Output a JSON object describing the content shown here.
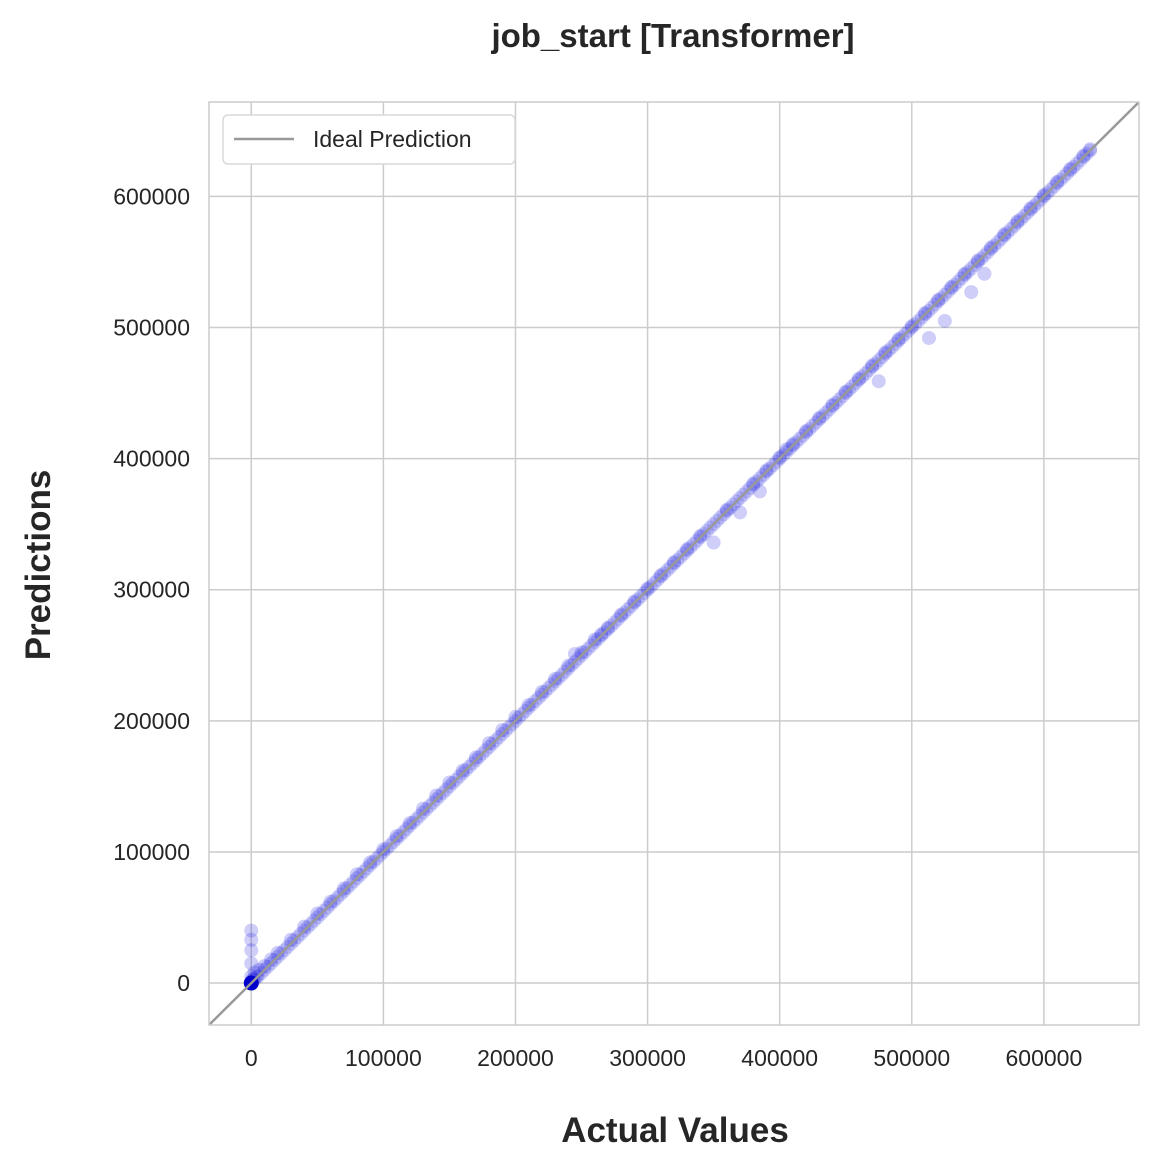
{
  "chart_data": {
    "type": "scatter",
    "title": "job_start [Transformer]",
    "xlabel": "Actual Values",
    "ylabel": "Predictions",
    "xlim": [
      -32000,
      672000
    ],
    "ylim": [
      -32000,
      672000
    ],
    "xticks": [
      0,
      100000,
      200000,
      300000,
      400000,
      500000,
      600000
    ],
    "yticks": [
      0,
      100000,
      200000,
      300000,
      400000,
      500000,
      600000
    ],
    "xtick_labels": [
      "0",
      "100000",
      "200000",
      "300000",
      "400000",
      "500000",
      "600000"
    ],
    "ytick_labels": [
      "0",
      "100000",
      "200000",
      "300000",
      "400000",
      "500000",
      "600000"
    ],
    "grid": true,
    "legend": {
      "position": "top-left",
      "entries": [
        "Ideal Prediction"
      ]
    },
    "reference_line": {
      "name": "Ideal Prediction",
      "color": "#999999",
      "slope": 1,
      "intercept": 0
    },
    "series": [
      {
        "color": "#1f1fe0",
        "x": [
          0,
          0,
          0,
          0,
          0,
          0,
          500,
          1500,
          2500,
          4000,
          6000,
          10000,
          15000,
          20000,
          30000,
          40000,
          50000,
          60000,
          70000,
          80000,
          90000,
          100000,
          110000,
          120000,
          130000,
          140000,
          150000,
          160000,
          170000,
          180000,
          190000,
          200000,
          210000,
          220000,
          230000,
          240000,
          245000,
          250000,
          260000,
          265000,
          270000,
          280000,
          290000,
          300000,
          310000,
          320000,
          330000,
          340000,
          350000,
          360000,
          370000,
          380000,
          385000,
          390000,
          400000,
          405000,
          410000,
          420000,
          430000,
          440000,
          450000,
          460000,
          470000,
          475000,
          480000,
          490000,
          500000,
          510000,
          513000,
          520000,
          525000,
          530000,
          540000,
          545000,
          550000,
          555000,
          560000,
          570000,
          580000,
          590000,
          600000,
          610000,
          620000,
          630000,
          635000
        ],
        "y": [
          0,
          5000,
          15000,
          25000,
          33000,
          40000,
          2000,
          3000,
          8000,
          5000,
          10000,
          13000,
          18000,
          23000,
          33000,
          43000,
          53000,
          62000,
          72000,
          83000,
          92000,
          102000,
          112000,
          122000,
          133000,
          143000,
          153000,
          162000,
          172000,
          183000,
          193000,
          203000,
          212000,
          222000,
          232000,
          242000,
          251000,
          252000,
          262000,
          266000,
          271000,
          281000,
          291000,
          301000,
          311000,
          321000,
          331000,
          341000,
          336000,
          361000,
          359000,
          381000,
          375000,
          391000,
          401000,
          407000,
          411000,
          421000,
          431000,
          441000,
          451000,
          461000,
          471000,
          459000,
          481000,
          491000,
          501000,
          511000,
          492000,
          521000,
          505000,
          531000,
          541000,
          527000,
          551000,
          541000,
          561000,
          571000,
          581000,
          591000,
          601000,
          611000,
          621000,
          631000,
          636000
        ]
      }
    ]
  }
}
